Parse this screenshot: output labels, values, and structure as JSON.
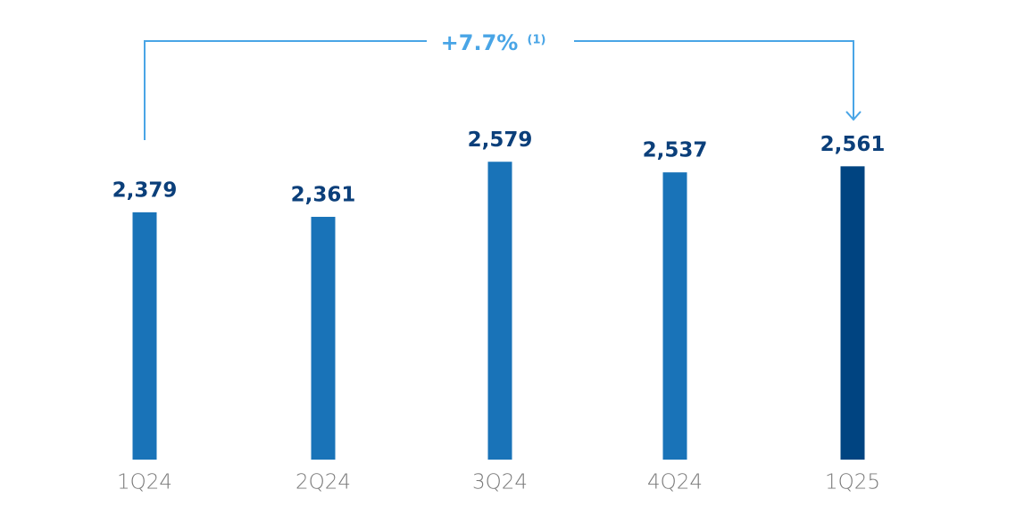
{
  "chart_data": {
    "type": "bar",
    "categories": [
      "1Q24",
      "2Q24",
      "3Q24",
      "4Q24",
      "1Q25"
    ],
    "values": [
      2379,
      2361,
      2579,
      2537,
      2561
    ],
    "value_labels": [
      "2,379",
      "2,361",
      "2,579",
      "2,537",
      "2,561"
    ],
    "colors": [
      "#1973b8",
      "#1973b8",
      "#1973b8",
      "#1973b8",
      "#004481"
    ],
    "ylim": [
      1400,
      2700
    ],
    "annotation": {
      "text": "+7.7%",
      "note": "(1)",
      "color": "#49a5e6"
    }
  }
}
